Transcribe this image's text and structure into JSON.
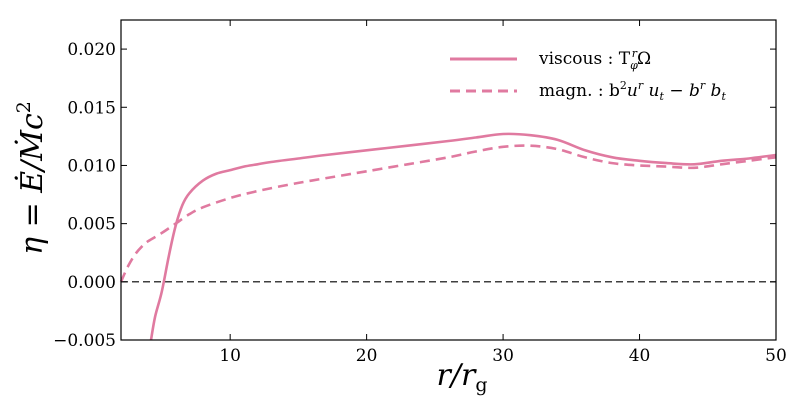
{
  "chart_data": {
    "type": "line",
    "xlabel": "r/r_g",
    "ylabel": "η = Ė/Ṁc²",
    "xlim": [
      2,
      50
    ],
    "ylim": [
      -0.005,
      0.0225
    ],
    "xticks": [
      10,
      20,
      30,
      40,
      50
    ],
    "yticks": [
      -0.005,
      0.0,
      0.005,
      0.01,
      0.015,
      0.02
    ],
    "xtick_labels": [
      "10",
      "20",
      "30",
      "40",
      "50"
    ],
    "ytick_labels": [
      "−0.005",
      "0.000",
      "0.005",
      "0.010",
      "0.015",
      "0.020"
    ],
    "grid": false,
    "legend_position": "top-right",
    "reference_line": {
      "y": 0.0,
      "style": "dashed",
      "color": "#000000"
    },
    "series": [
      {
        "name": "viscous : T^r_φ Ω",
        "legend_label": "viscous : T",
        "legend_sup": "r",
        "legend_sub": "φ",
        "legend_tail": "Ω",
        "style": "solid",
        "color": "#e07aa0",
        "x": [
          4.2,
          4.5,
          5,
          5.5,
          6,
          6.5,
          7,
          8,
          9,
          10,
          11,
          12,
          13,
          15,
          17,
          20,
          23,
          26,
          28,
          30,
          32,
          34,
          36,
          38,
          40,
          42,
          44,
          46,
          48,
          50
        ],
        "y": [
          -0.005,
          -0.003,
          -0.0008,
          0.0022,
          0.0048,
          0.0066,
          0.0076,
          0.0087,
          0.0093,
          0.0096,
          0.0099,
          0.0101,
          0.0103,
          0.0106,
          0.0109,
          0.0113,
          0.0117,
          0.0121,
          0.0124,
          0.0127,
          0.0126,
          0.0122,
          0.0113,
          0.0107,
          0.0104,
          0.0102,
          0.0101,
          0.0104,
          0.0106,
          0.0109
        ]
      },
      {
        "name": "magn. : b²u^r u_t − b^r b_t",
        "legend_label": "magn. : b",
        "legend_rest": "u",
        "style": "dashed",
        "color": "#e07aa0",
        "x": [
          2,
          2.5,
          3,
          3.5,
          4,
          5,
          6,
          7,
          8,
          10,
          12,
          15,
          18,
          20,
          23,
          26,
          28,
          30,
          32,
          34,
          36,
          38,
          40,
          42,
          44,
          46,
          48,
          50
        ],
        "y": [
          0.0,
          0.0013,
          0.0023,
          0.003,
          0.0035,
          0.0042,
          0.005,
          0.0058,
          0.0064,
          0.0072,
          0.0078,
          0.0085,
          0.0091,
          0.0095,
          0.0101,
          0.0107,
          0.0112,
          0.0116,
          0.0117,
          0.0114,
          0.0107,
          0.0102,
          0.01,
          0.0099,
          0.0098,
          0.0101,
          0.0104,
          0.0107
        ]
      }
    ]
  }
}
